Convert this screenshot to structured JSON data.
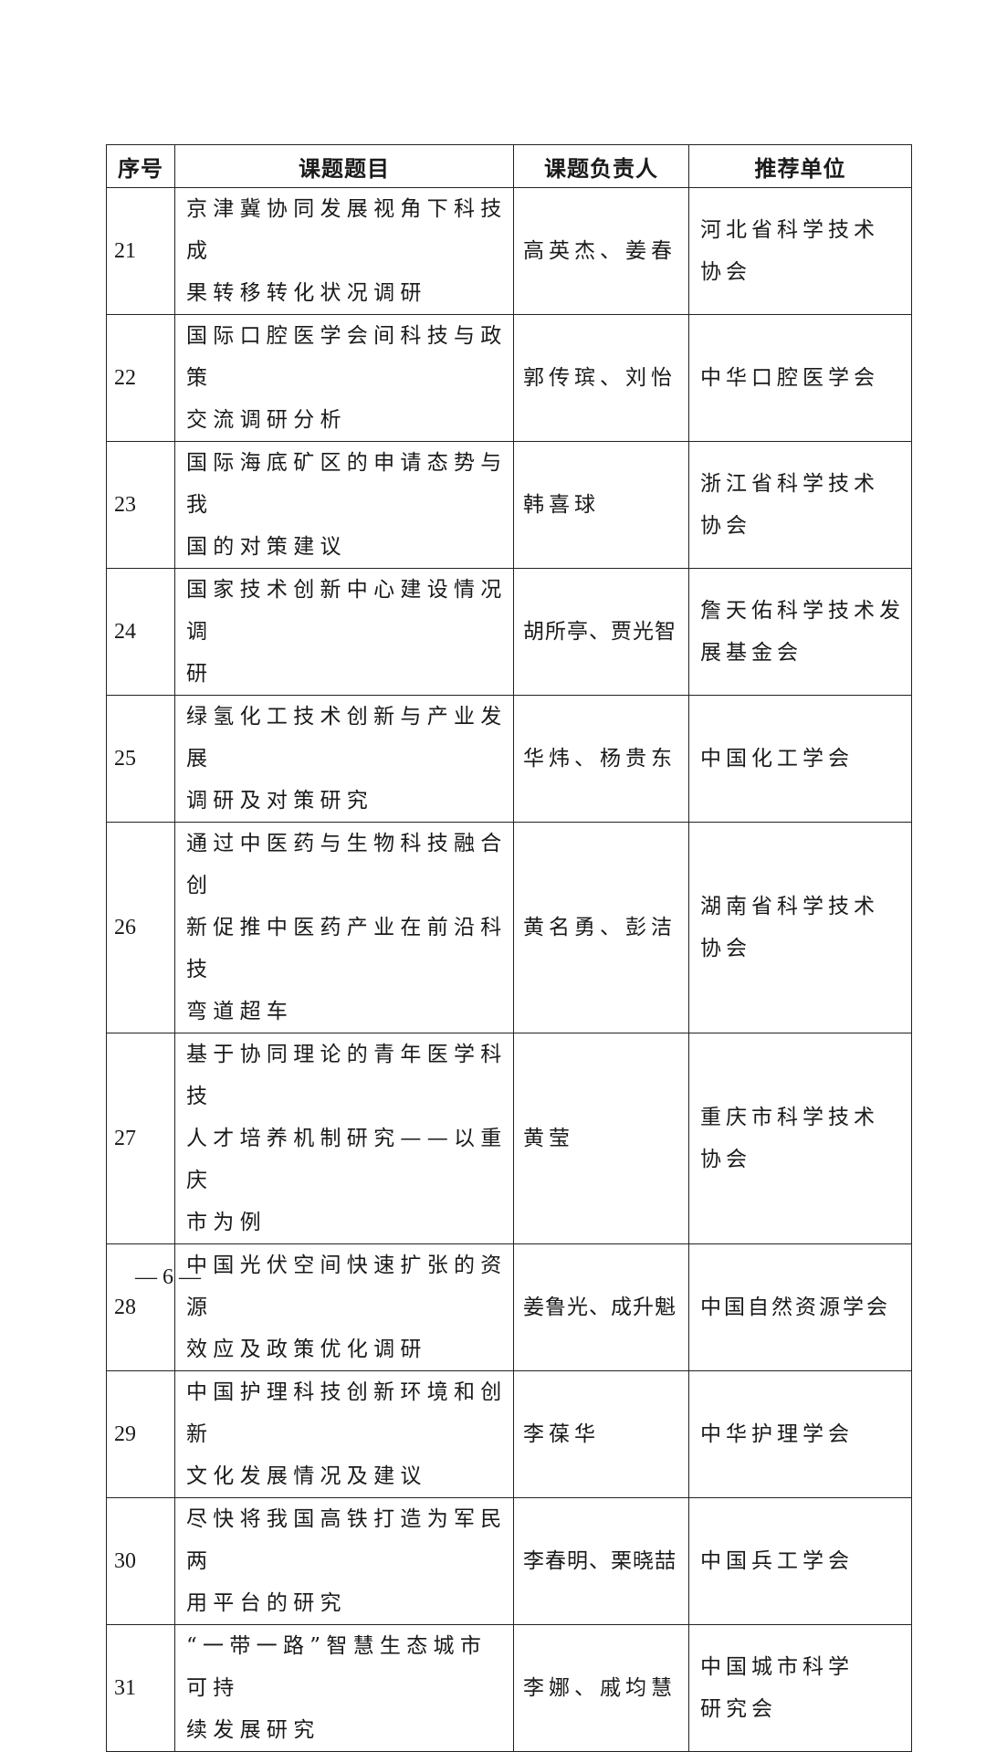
{
  "table": {
    "headers": [
      "序号",
      "课题题目",
      "课题负责人",
      "推荐单位"
    ],
    "rows": [
      {
        "no": "21",
        "title": "京津冀协同发展视角下科技成\n果转移转化状况调研",
        "person": "高英杰、姜春",
        "unit": "河北省科学技术\n协会"
      },
      {
        "no": "22",
        "title": "国际口腔医学会间科技与政策\n交流调研分析",
        "person": "郭传瑸、刘怡",
        "unit": "中华口腔医学会"
      },
      {
        "no": "23",
        "title": "国际海底矿区的申请态势与我\n国的对策建议",
        "person": "韩喜球",
        "unit": "浙江省科学技术\n协会"
      },
      {
        "no": "24",
        "title": "国家技术创新中心建设情况调\n研",
        "person": "胡所亭、贾光智",
        "unit": "詹天佑科学技术发\n展基金会"
      },
      {
        "no": "25",
        "title": "绿氢化工技术创新与产业发展\n调研及对策研究",
        "person": "华炜、杨贵东",
        "unit": "中国化工学会"
      },
      {
        "no": "26",
        "title": "通过中医药与生物科技融合创\n新促推中医药产业在前沿科技\n弯道超车",
        "person": "黄名勇、彭洁",
        "unit": "湖南省科学技术\n协会"
      },
      {
        "no": "27",
        "title": "基于协同理论的青年医学科技\n人才培养机制研究——以重庆\n市为例",
        "person": "黄莹",
        "unit": "重庆市科学技术\n协会"
      },
      {
        "no": "28",
        "title": "中国光伏空间快速扩张的资源\n效应及政策优化调研",
        "person": "姜鲁光、成升魁",
        "unit": "中国自然资源学会"
      },
      {
        "no": "29",
        "title": "中国护理科技创新环境和创新\n文化发展情况及建议",
        "person": "李葆华",
        "unit": "中华护理学会"
      },
      {
        "no": "30",
        "title": "尽快将我国高铁打造为军民两\n用平台的研究",
        "person": "李春明、栗晓喆",
        "unit": "中国兵工学会"
      },
      {
        "no": "31",
        "title": "“一带一路”智慧生态城市可持\n续发展研究",
        "person": "李娜、戚均慧",
        "unit": "中国城市科学\n研究会"
      }
    ]
  },
  "footer": {
    "page_number": "— 6 —"
  }
}
